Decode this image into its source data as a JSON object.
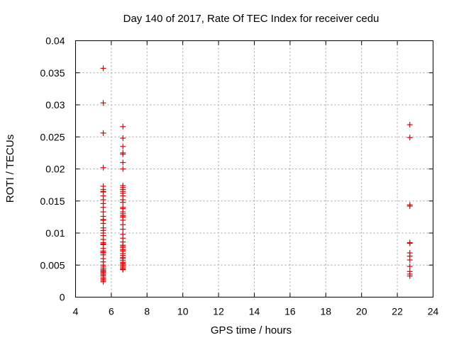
{
  "chart_data": {
    "type": "scatter",
    "title": "Day 140 of 2017, Rate Of TEC Index for receiver cedu",
    "xlabel": "GPS time / hours",
    "ylabel": "ROTI / TECUs",
    "xlim": [
      4,
      24
    ],
    "ylim": [
      0,
      0.04
    ],
    "xticks": [
      4,
      6,
      8,
      10,
      12,
      14,
      16,
      18,
      20,
      22,
      24
    ],
    "xtick_labels": [
      "4",
      "6",
      "8",
      "10",
      "12",
      "14",
      "16",
      "18",
      "20",
      "22",
      "24"
    ],
    "yticks": [
      0,
      0.005,
      0.01,
      0.015,
      0.02,
      0.025,
      0.03,
      0.035,
      0.04
    ],
    "ytick_labels": [
      "0",
      "0.005",
      "0.01",
      "0.015",
      "0.02",
      "0.025",
      "0.03",
      "0.035",
      "0.04"
    ],
    "grid": true,
    "marker": "+",
    "color": "#e00000",
    "series": [
      {
        "name": "ROTI",
        "x": [
          5.55,
          5.55,
          5.55,
          5.55,
          5.55,
          5.55,
          5.55,
          5.55,
          5.55,
          5.55,
          5.55,
          5.55,
          5.55,
          5.55,
          5.55,
          5.55,
          5.55,
          5.55,
          5.55,
          5.55,
          5.55,
          5.55,
          5.55,
          5.55,
          5.55,
          5.55,
          5.55,
          5.55,
          5.55,
          5.55,
          5.55,
          5.55,
          5.55,
          5.55,
          5.55,
          5.55,
          5.55,
          5.55,
          5.55,
          5.55,
          5.55,
          5.55,
          5.55,
          5.55,
          5.55,
          6.65,
          6.65,
          6.65,
          6.65,
          6.65,
          6.65,
          6.65,
          6.65,
          6.65,
          6.65,
          6.65,
          6.65,
          6.65,
          6.65,
          6.65,
          6.65,
          6.65,
          6.65,
          6.65,
          6.65,
          6.65,
          6.65,
          6.65,
          6.65,
          6.65,
          6.65,
          6.65,
          6.65,
          6.65,
          6.65,
          6.65,
          6.65,
          6.65,
          6.65,
          6.65,
          6.65,
          6.65,
          6.65,
          6.65,
          6.65,
          6.65,
          6.65,
          6.65,
          6.65,
          6.65,
          22.7,
          22.7,
          22.7,
          22.7,
          22.7,
          22.7,
          22.7,
          22.7,
          22.7,
          22.7,
          22.7,
          22.7,
          22.7
        ],
        "y": [
          0.0357,
          0.0303,
          0.0256,
          0.0202,
          0.0173,
          0.0168,
          0.0165,
          0.0164,
          0.0158,
          0.0152,
          0.0146,
          0.014,
          0.0133,
          0.0126,
          0.0121,
          0.012,
          0.0115,
          0.0108,
          0.0104,
          0.01,
          0.0096,
          0.009,
          0.0085,
          0.0083,
          0.0082,
          0.0076,
          0.0072,
          0.007,
          0.0069,
          0.0066,
          0.006,
          0.0055,
          0.005,
          0.0047,
          0.0044,
          0.0042,
          0.004,
          0.0039,
          0.0037,
          0.0035,
          0.0033,
          0.003,
          0.0028,
          0.0026,
          0.0024,
          0.0266,
          0.0248,
          0.0235,
          0.0225,
          0.0223,
          0.021,
          0.02,
          0.0174,
          0.0171,
          0.0168,
          0.0165,
          0.0162,
          0.0158,
          0.0152,
          0.0148,
          0.014,
          0.0138,
          0.0133,
          0.013,
          0.0127,
          0.0125,
          0.012,
          0.0113,
          0.0106,
          0.0098,
          0.0092,
          0.0086,
          0.0081,
          0.0079,
          0.0077,
          0.0074,
          0.0072,
          0.0068,
          0.0065,
          0.0062,
          0.006,
          0.0057,
          0.0054,
          0.0052,
          0.005,
          0.0048,
          0.0046,
          0.0044,
          0.0043,
          0.0043,
          0.0269,
          0.0249,
          0.0144,
          0.0142,
          0.0085,
          0.0084,
          0.0069,
          0.0064,
          0.0058,
          0.0048,
          0.004,
          0.0036,
          0.0033
        ]
      }
    ]
  }
}
